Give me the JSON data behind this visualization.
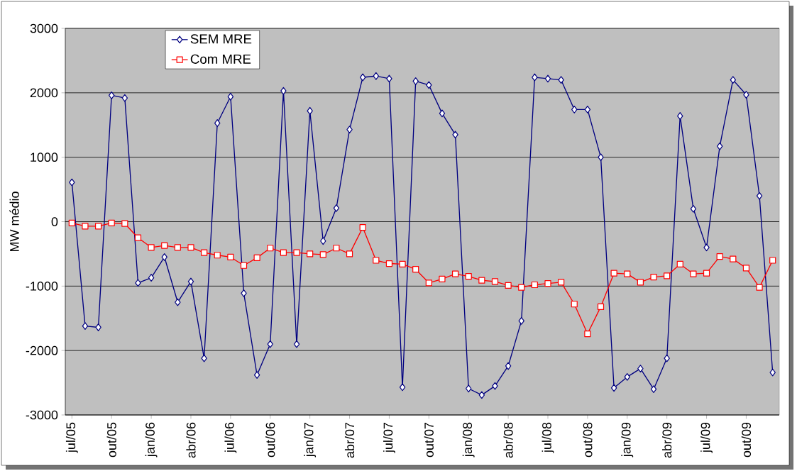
{
  "chart_data": {
    "type": "line",
    "ylabel": "MW médio",
    "categories": [
      "jul/05",
      null,
      null,
      "out/05",
      null,
      null,
      "jan/06",
      null,
      null,
      "abr/06",
      null,
      null,
      "jul/06",
      null,
      null,
      "out/06",
      null,
      null,
      "jan/07",
      null,
      null,
      "abr/07",
      null,
      null,
      "jul/07",
      null,
      null,
      "out/07",
      null,
      null,
      "jan/08",
      null,
      null,
      "abr/08",
      null,
      null,
      "jul/08",
      null,
      null,
      "out/08",
      null,
      null,
      "jan/09",
      null,
      null,
      "abr/09",
      null,
      null,
      "jul/09",
      null,
      null,
      "out/09",
      null,
      null
    ],
    "series": [
      {
        "name": "SEM MRE",
        "color": "#000080",
        "marker": "diamond",
        "values": [
          610,
          -1620,
          -1640,
          1960,
          1920,
          -950,
          -870,
          -550,
          -1250,
          -930,
          -2120,
          1530,
          1940,
          -1110,
          -2380,
          -1900,
          2030,
          -1900,
          1720,
          -300,
          210,
          1430,
          2240,
          2260,
          2220,
          -2570,
          2180,
          2120,
          1680,
          1350,
          -2590,
          -2690,
          -2550,
          -2240,
          -1540,
          2240,
          2220,
          2200,
          1740,
          1740,
          1000,
          -2580,
          -2410,
          -2280,
          -2600,
          -2120,
          1640,
          200,
          -400,
          1170,
          2200,
          1970,
          400,
          -2340
        ]
      },
      {
        "name": "Com MRE",
        "color": "#ff0000",
        "marker": "square",
        "values": [
          -20,
          -70,
          -70,
          -20,
          -30,
          -250,
          -400,
          -370,
          -400,
          -400,
          -480,
          -520,
          -550,
          -680,
          -560,
          -410,
          -480,
          -480,
          -500,
          -510,
          -410,
          -500,
          -90,
          -600,
          -650,
          -660,
          -740,
          -950,
          -890,
          -810,
          -850,
          -910,
          -930,
          -990,
          -1020,
          -980,
          -960,
          -940,
          -1280,
          -1740,
          -1320,
          -800,
          -810,
          -940,
          -860,
          -840,
          -660,
          -810,
          -800,
          -540,
          -580,
          -720,
          -1020,
          -600
        ]
      }
    ],
    "ylim": [
      -3000,
      3000
    ],
    "yticks": [
      -3000,
      -2000,
      -1000,
      0,
      1000,
      2000,
      3000
    ],
    "grid": "y",
    "legend": "top left"
  }
}
